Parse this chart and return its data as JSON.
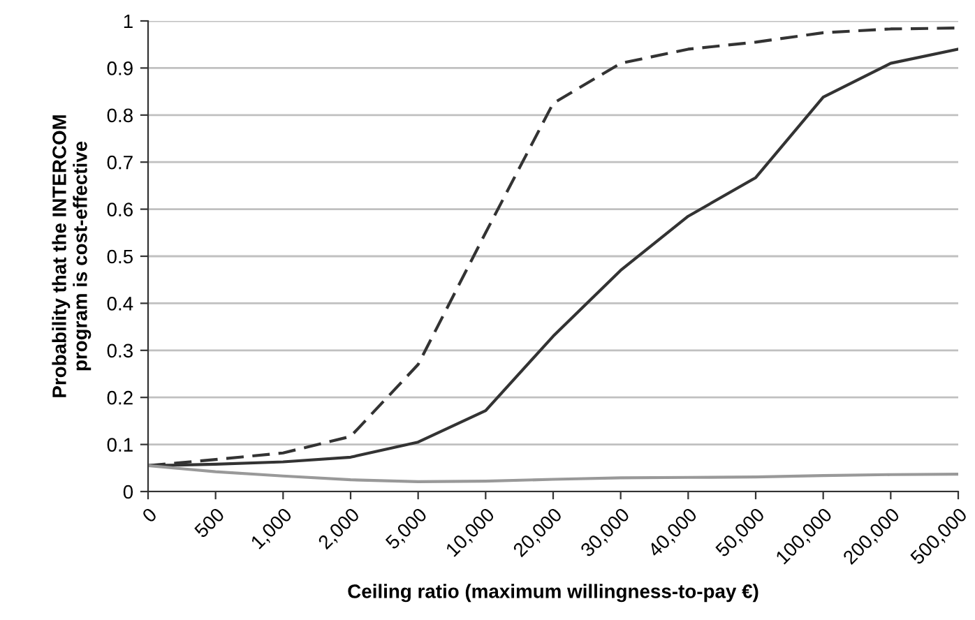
{
  "chart_data": {
    "type": "line",
    "xlabel": "Ceiling ratio (maximum willingness-to-pay €)",
    "ylabel": "Probability that the INTERCOM\nprogram is cost-effective",
    "categories": [
      "0",
      "500",
      "1,000",
      "2,000",
      "5,000",
      "10,000",
      "20,000",
      "30,000",
      "40,000",
      "50,000",
      "100,000",
      "200,000",
      "500,000"
    ],
    "series": [
      {
        "color": "#333333",
        "line_style": "dashed",
        "values": [
          0.055,
          0.068,
          0.082,
          0.117,
          0.27,
          0.55,
          0.825,
          0.91,
          0.94,
          0.955,
          0.975,
          0.983,
          0.985
        ]
      },
      {
        "color": "#333333",
        "line_style": "solid",
        "values": [
          0.055,
          0.058,
          0.063,
          0.073,
          0.105,
          0.172,
          0.33,
          0.47,
          0.585,
          0.667,
          0.838,
          0.91,
          0.94
        ]
      },
      {
        "color": "#999999",
        "line_style": "solid",
        "values": [
          0.055,
          0.042,
          0.033,
          0.025,
          0.021,
          0.022,
          0.026,
          0.029,
          0.03,
          0.031,
          0.034,
          0.036,
          0.037
        ]
      }
    ],
    "ylim": [
      0,
      1
    ],
    "yticks": [
      0,
      0.1,
      0.2,
      0.3,
      0.4,
      0.5,
      0.6,
      0.7,
      0.8,
      0.9,
      1
    ],
    "grid": "y",
    "legend": false,
    "marker": "none"
  }
}
